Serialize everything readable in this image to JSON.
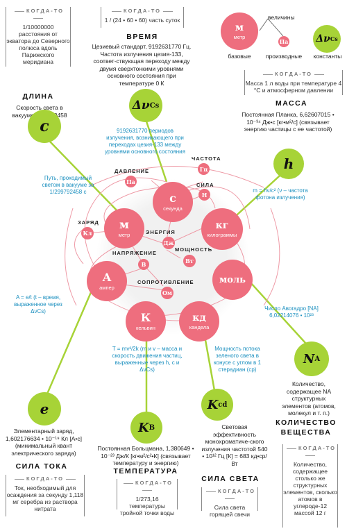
{
  "kogda_to": "КОГДА-ТО",
  "length": {
    "old": "1/10000000 расстояния от экватора до Северного полюса вдоль Парижского меридиана",
    "name": "ДЛИНА",
    "now": "Скорость света в вакууме, 299792458 м/с",
    "constant": "c",
    "link": "Путь, проходимый светом в вакууме за 1/299792458 с"
  },
  "time": {
    "old": "1 / (24 • 60 • 60) часть суток",
    "name": "ВРЕМЯ",
    "now": "Цезиевый стандарт, 9192631770 Гц. Частота излучения цезия-133, соответ-ствующая переходу между двумя сверхтонкими уровнями основного состояния при температуре 0 К",
    "constant": "Δν",
    "constant_sub": "Cs",
    "link": "9192631770 периодов излучения, возникающего при переходах цезия-133 между уровнями основного состояния"
  },
  "legend": {
    "values_label": "величины",
    "base_symbol": "м",
    "base_name": "метр",
    "base_label": "базовые",
    "derived_symbol": "Па",
    "derived_label": "производные",
    "constant_symbol": "Δν",
    "constant_sub": "Cs",
    "constant_label": "константы"
  },
  "mass": {
    "old": "Масса 1 л воды при температуре 4 °С и атмосферном давлении",
    "name": "МАССА",
    "now": "Постоянная Планка, 6,62607015 • 10⁻³⁴ Дж•с [кг•м²/с] (связывает энергию частицы с ее частотой)",
    "constant": "h",
    "link": "m = hν/c² (ν – частота фотона излучения)"
  },
  "current": {
    "constant": "e",
    "link": "A = e/t (t – время, выраженное через ΔνCs)",
    "now": "Элементарный заряд, 1,602176634 • 10⁻¹⁹ Кл [А•с] (минимальный квант электрического заряда)",
    "name": "СИЛА ТОКА",
    "old": "Ток, необходимый для осаждения за секунду 1,118 мг серебра из раствора нитрата"
  },
  "temperature": {
    "constant": "K",
    "constant_sub": "B",
    "link": "T = mv²/2k (m и v – масса и скорость движения частиц, выраженные через h, c и ΔνCs)",
    "now": "Постоянная Больцмана, 1,380649 • 10⁻²³ Дж/К [кг•м²/с²•К] (связывает температуру и энергию)",
    "name": "ТЕМПЕРАТУРА",
    "old": "1/273,16 температуры тройной точки воды"
  },
  "luminous": {
    "constant": "K",
    "constant_sub": "cd",
    "link": "Мощность потока зеленого света в конусе с углом в 1 стерадиан (ср)",
    "now": "Световая эффективность монохроматиче-ского излучения частотой 540 • 10¹² Гц [К] = 683 кд•ср/Вт",
    "name": "СИЛА СВЕТА",
    "old": "Сила света горящей свечи"
  },
  "amount": {
    "constant": "N",
    "constant_sub": "A",
    "link": "Число Авогадро [NA] 6,02214076 • 10²³",
    "now": "Количество, содержащее NA структурных элементов (атомов, молекул и т. п.)",
    "name": "КОЛИЧЕСТВО ВЕЩЕСТВА",
    "old": "Количество, содержащее столько же структурных элементов, сколько атомов в углероде-12 массой 12 г"
  },
  "units": {
    "second": {
      "symbol": "с",
      "name": "секунда"
    },
    "meter": {
      "symbol": "м",
      "name": "метр"
    },
    "kilogram": {
      "symbol": "кг",
      "name": "килограммы"
    },
    "ampere": {
      "symbol": "А",
      "name": "ампер"
    },
    "mole": {
      "symbol": "моль",
      "name": ""
    },
    "kelvin": {
      "symbol": "К",
      "name": "кельвин"
    },
    "candela": {
      "symbol": "кд",
      "name": "кандела"
    }
  },
  "derived": {
    "pascal": "Па",
    "hertz": "Гц",
    "newton": "Н",
    "coulomb": "Кл",
    "joule": "Дж",
    "volt": "В",
    "watt": "Вт",
    "ohm": "Ом"
  },
  "derived_names": {
    "pressure": "ДАВЛЕНИЕ",
    "frequency": "ЧАСТОТА",
    "force": "СИЛА",
    "charge": "ЗАРЯД",
    "energy": "ЭНЕРГИЯ",
    "voltage": "НАПРЯЖЕНИЕ",
    "power": "МОЩНОСТЬ",
    "resistance": "СОПРОТИВЛЕНИЕ"
  },
  "colors": {
    "unit": "#ee6e7e",
    "constant": "#a7d337",
    "link_text": "#1a8fbf"
  }
}
